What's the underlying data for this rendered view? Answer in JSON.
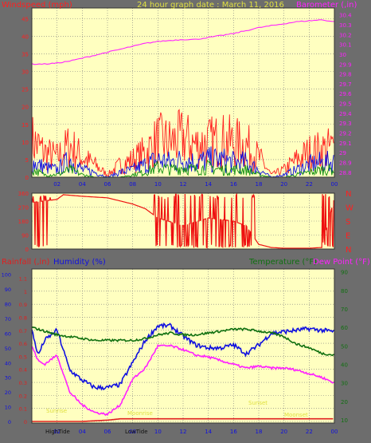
{
  "colors": {
    "background": "#6d6d6d",
    "plot_bg": "#ffffc0",
    "grid": "#7a7a7a",
    "wind_speed": "#ff2020",
    "wind_avg": "#1010e0",
    "wind_min": "#109010",
    "barometer": "#ff20ff",
    "direction": "#ee1010",
    "rain": "#e02020",
    "humidity": "#1010e0",
    "temperature": "#107010",
    "dew_point": "#ff20ff",
    "annotation": "#e0e040"
  },
  "chart_data": [
    {
      "id": "wind-baro",
      "type": "line",
      "title": "24 hour graph date : March 11, 2016",
      "ylabel_left": "Windspeed (mph)",
      "ylabel_right": "Barometer (,in)",
      "x_ticks": [
        "02",
        "04",
        "06",
        "08",
        "10",
        "12",
        "14",
        "16",
        "18",
        "20",
        "22",
        "00"
      ],
      "y_left_ticks": [
        "0",
        "5",
        "10",
        "15",
        "20",
        "25",
        "30",
        "35",
        "40",
        "45"
      ],
      "y_left_range": [
        0,
        48
      ],
      "y_right_ticks": [
        "28.8",
        "28.9",
        "29",
        "29.1",
        "29.2",
        "29.3",
        "29.4",
        "29.5",
        "29.6",
        "29.7",
        "29.8",
        "29.9",
        "30",
        "30.1",
        "30.2",
        "30.3",
        "30.4"
      ],
      "y_right_range": [
        28.75,
        30.47
      ],
      "x_range_hours": [
        0,
        24
      ],
      "series": [
        {
          "key": "barometer",
          "axis": "right",
          "color": "#ff20ff",
          "x": [
            0,
            1,
            2,
            3,
            4,
            5,
            6,
            7,
            8,
            9,
            10,
            11,
            12,
            13,
            14,
            15,
            16,
            17,
            18,
            19,
            20,
            21,
            22,
            23,
            24
          ],
          "values": [
            29.9,
            29.9,
            29.91,
            29.93,
            29.96,
            29.99,
            30.02,
            30.05,
            30.08,
            30.11,
            30.13,
            30.14,
            30.15,
            30.15,
            30.17,
            30.19,
            30.21,
            30.24,
            30.27,
            30.29,
            30.31,
            30.33,
            30.34,
            30.35,
            30.33
          ]
        },
        {
          "key": "wind_peak",
          "axis": "left",
          "color": "#ff2020",
          "x": [
            0,
            1,
            2,
            3,
            4,
            5,
            6,
            7,
            8,
            9,
            10,
            11,
            12,
            13,
            14,
            15,
            16,
            17,
            18,
            19,
            20,
            21,
            22,
            23,
            24
          ],
          "values": [
            15,
            10,
            8,
            13,
            8,
            5,
            1,
            5,
            7,
            10,
            15,
            14,
            16,
            13,
            14,
            15,
            14,
            13,
            8,
            1,
            3,
            7,
            10,
            11,
            12
          ]
        },
        {
          "key": "wind_avg",
          "axis": "left",
          "color": "#1010e0",
          "x": [
            0,
            1,
            2,
            3,
            4,
            5,
            6,
            7,
            8,
            9,
            10,
            11,
            12,
            13,
            14,
            15,
            16,
            17,
            18,
            19,
            20,
            21,
            22,
            23,
            24
          ],
          "values": [
            6,
            4,
            3,
            7,
            3,
            2,
            0,
            2,
            3,
            5,
            7,
            6,
            7,
            6,
            7,
            7,
            6,
            6,
            3,
            0,
            1,
            3,
            5,
            6,
            6
          ]
        },
        {
          "key": "wind_min",
          "axis": "left",
          "color": "#109010",
          "x": [
            0,
            1,
            2,
            3,
            4,
            5,
            6,
            7,
            8,
            9,
            10,
            11,
            12,
            13,
            14,
            15,
            16,
            17,
            18,
            19,
            20,
            21,
            22,
            23,
            24
          ],
          "values": [
            3,
            1,
            1,
            3,
            1,
            0,
            0,
            0,
            1,
            2,
            4,
            3,
            4,
            3,
            4,
            3,
            3,
            3,
            1,
            0,
            0,
            1,
            2,
            3,
            3
          ]
        }
      ]
    },
    {
      "id": "direction",
      "type": "line",
      "y_left_ticks": [
        "0",
        "90",
        "180",
        "270",
        "360"
      ],
      "y_range": [
        0,
        360
      ],
      "compass_labels": [
        "N",
        "W",
        "S",
        "E",
        "N"
      ],
      "x_range_hours": [
        0,
        24
      ],
      "series": [
        {
          "key": "direction",
          "color": "#ee1010",
          "x": [
            0,
            2,
            2.5,
            4,
            6,
            7,
            8,
            9,
            10,
            12,
            14,
            16,
            17,
            18,
            19,
            20,
            22,
            23,
            24
          ],
          "values": [
            300,
            320,
            350,
            340,
            330,
            310,
            290,
            260,
            200,
            150,
            200,
            180,
            150,
            30,
            10,
            5,
            5,
            10,
            330
          ]
        }
      ]
    },
    {
      "id": "rain-hum-temp",
      "type": "line",
      "ylabel_rain": "Rainfall (,in)",
      "ylabel_humidity": "Humidity (%)",
      "ylabel_temperature": "Temperature (°F)",
      "ylabel_dewpoint": "Dew Point (°F)",
      "x_ticks": [
        "02",
        "04",
        "06",
        "08",
        "10",
        "12",
        "14",
        "16",
        "18",
        "20",
        "22",
        "00"
      ],
      "humidity_ticks": [
        "0",
        "10",
        "20",
        "30",
        "40",
        "50",
        "60",
        "70",
        "80",
        "90",
        "100"
      ],
      "rain_ticks": [
        "0",
        "0.1",
        "0.2",
        "0.3",
        "0.4",
        "0.5",
        "0.6",
        "0.7",
        "0.8",
        "0.9",
        "1",
        "1.1"
      ],
      "temp_ticks": [
        "10",
        "20",
        "30",
        "40",
        "50",
        "60",
        "70",
        "80",
        "90"
      ],
      "humidity_range": [
        0,
        100
      ],
      "temp_range": [
        10,
        90
      ],
      "x_range_hours": [
        0,
        24
      ],
      "annotations": [
        "Sunrise",
        "Sunset",
        "Moonrise",
        "Moonset",
        "HighTide",
        "LowTide"
      ],
      "series": [
        {
          "key": "humidity",
          "axis": "humidity",
          "color": "#1010e0",
          "x": [
            0,
            0.5,
            1,
            2,
            3,
            4,
            5,
            6,
            7,
            8,
            9,
            10,
            11,
            12,
            13,
            14,
            15,
            16,
            17,
            18,
            19,
            20,
            21,
            22,
            23,
            24
          ],
          "values": [
            62,
            45,
            55,
            62,
            35,
            28,
            23,
            23,
            25,
            40,
            55,
            65,
            65,
            58,
            52,
            50,
            50,
            52,
            46,
            52,
            60,
            61,
            62,
            63,
            62,
            61
          ]
        },
        {
          "key": "temperature",
          "axis": "temp",
          "color": "#107010",
          "x": [
            0,
            1,
            2,
            3,
            4,
            5,
            6,
            7,
            8,
            9,
            10,
            11,
            12,
            13,
            14,
            15,
            16,
            17,
            18,
            19,
            20,
            21,
            22,
            23,
            24
          ],
          "values": [
            60,
            58,
            56,
            55,
            54,
            53,
            53,
            53,
            53,
            54,
            56,
            57,
            56,
            56,
            57,
            58,
            59,
            59,
            58,
            57,
            55,
            51,
            49,
            46,
            45
          ]
        },
        {
          "key": "dew_point",
          "axis": "temp",
          "color": "#ff20ff",
          "x": [
            0,
            0.5,
            1,
            2,
            3,
            4,
            5,
            6,
            7,
            8,
            9,
            10,
            11,
            12,
            13,
            14,
            15,
            16,
            17,
            18,
            19,
            20,
            21,
            22,
            23,
            24
          ],
          "values": [
            50,
            42,
            40,
            45,
            25,
            18,
            14,
            13,
            18,
            32,
            38,
            50,
            50,
            48,
            45,
            44,
            42,
            40,
            38,
            39,
            38,
            38,
            37,
            35,
            33,
            30
          ]
        },
        {
          "key": "rainfall",
          "axis": "rain",
          "color": "#e02020",
          "x": [
            0,
            4,
            6,
            7,
            24
          ],
          "values": [
            0,
            0,
            0.01,
            0.02,
            0.02
          ]
        }
      ]
    }
  ]
}
